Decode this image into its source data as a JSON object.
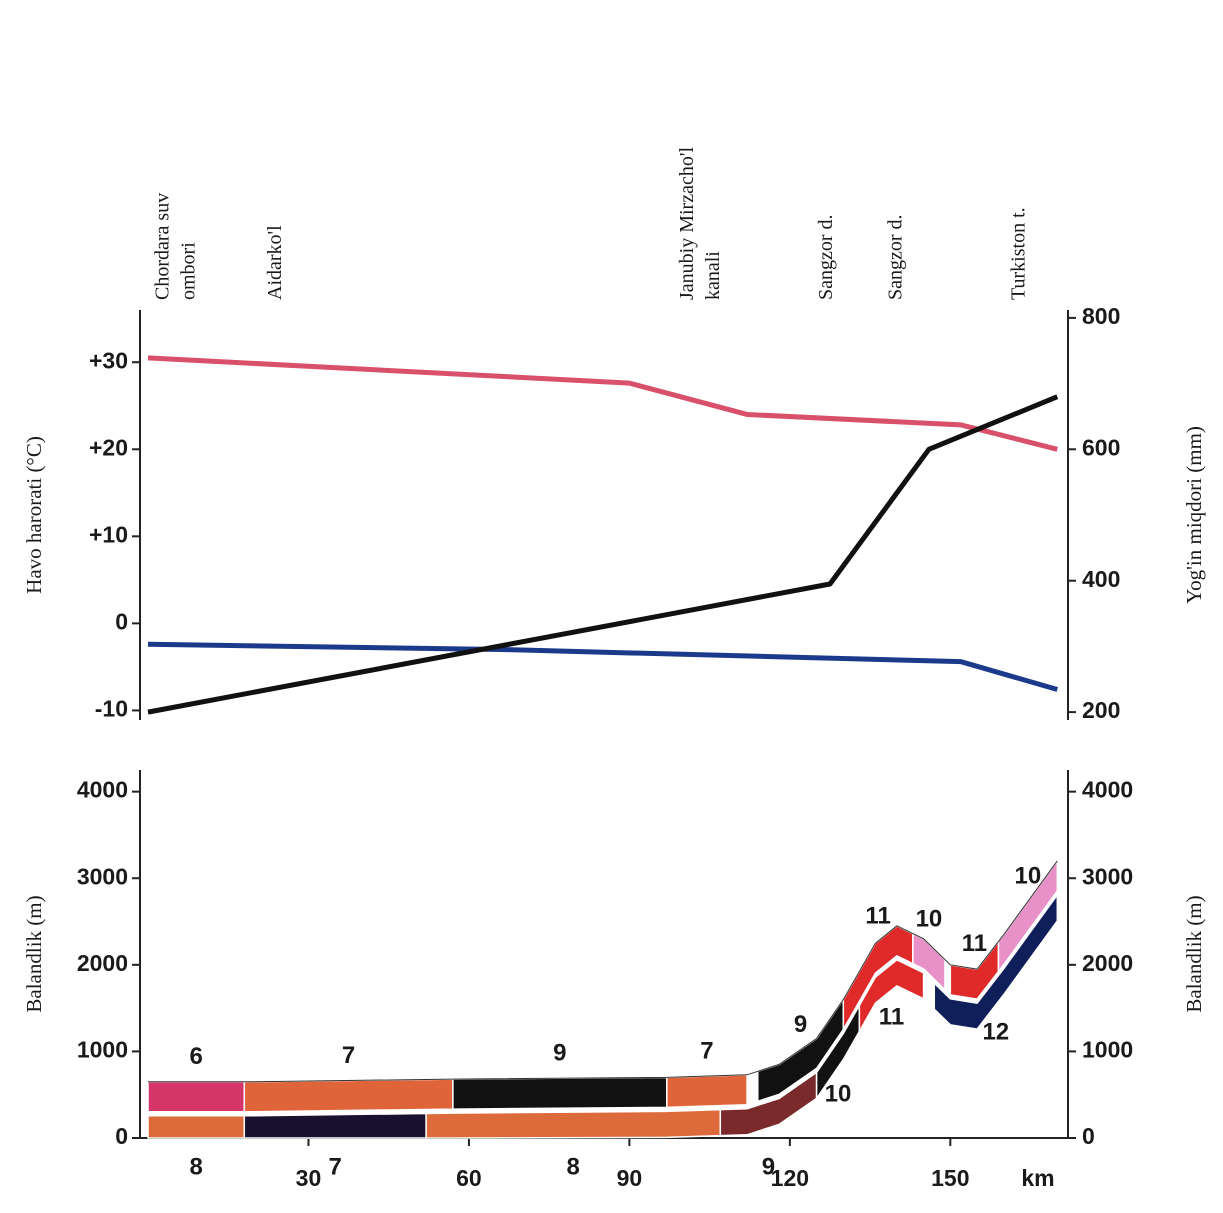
{
  "chart_data": [
    {
      "type": "line",
      "annotations": [
        {
          "x": 3,
          "lines": [
            "Chordara suv",
            "ombori"
          ]
        },
        {
          "x": 24,
          "lines": [
            "Aidarko'l"
          ]
        },
        {
          "x": 101,
          "lines": [
            "Janubiy Mirzacho'l",
            "kanali"
          ]
        },
        {
          "x": 127,
          "lines": [
            "Sangzor d."
          ]
        },
        {
          "x": 140,
          "lines": [
            "Sangzor d."
          ]
        },
        {
          "x": 163,
          "lines": [
            "Turkiston t."
          ]
        }
      ],
      "ylabel": "Havo harorati (°C)",
      "y2label": "Yog'in miqdori (mm)",
      "xlim": [
        0,
        172
      ],
      "ylim": [
        -11.1,
        36
      ],
      "y2lim": [
        188,
        812
      ],
      "yticks": [
        -10,
        0,
        {
          "value": 10,
          "label": "+10"
        },
        {
          "value": 20,
          "label": "+20"
        },
        {
          "value": 30,
          "label": "+30"
        }
      ],
      "y2ticks": [
        200,
        400,
        600,
        800
      ],
      "series": [
        {
          "color": "#d9506a",
          "x": [
            0,
            90,
            112,
            152,
            170
          ],
          "values": [
            30.5,
            27.6,
            24,
            22.8,
            20
          ]
        },
        {
          "color": "#1c3a8c",
          "x": [
            0,
            66,
            152,
            170
          ],
          "values": [
            -2.4,
            -3,
            -4.4,
            -7.6
          ]
        },
        {
          "color": "#111111",
          "axis": "y2",
          "x": [
            0,
            127.5,
            146,
            170
          ],
          "values": [
            200,
            395,
            600,
            680
          ]
        }
      ]
    },
    {
      "type": "profile",
      "ylabel": "Balandlik (m)",
      "y2label": "Balandlik (m)",
      "xlabel": "km",
      "xlim": [
        0,
        172
      ],
      "ylim": [
        0,
        4250
      ],
      "y2lim": [
        0,
        4250
      ],
      "xticks": [
        30,
        60,
        90,
        120,
        150
      ],
      "yticks": [
        0,
        1000,
        2000,
        3000,
        4000
      ],
      "y2ticks": [
        0,
        1000,
        2000,
        3000,
        4000
      ],
      "x": [
        0,
        20,
        57,
        97,
        112,
        118,
        125,
        130,
        136,
        140,
        145,
        150,
        155,
        160,
        170
      ],
      "values": [
        650,
        650,
        680,
        700,
        730,
        850,
        1150,
        1600,
        2250,
        2450,
        2300,
        2000,
        1950,
        2350,
        3200
      ],
      "upper_zones": [
        {
          "label": "6",
          "start": 0,
          "end": 18,
          "color": "#d6356a"
        },
        {
          "label": "7",
          "start": 18,
          "end": 57,
          "color": "#e0643a"
        },
        {
          "label": "9",
          "start": 57,
          "end": 97,
          "color": "#111111"
        },
        {
          "label": "7",
          "start": 97,
          "end": 112,
          "color": "#e0643a"
        },
        {
          "label": "9",
          "start": 114,
          "end": 130,
          "color": "#111111"
        },
        {
          "label": "11",
          "start": 130,
          "end": 143,
          "color": "#e02a2a"
        },
        {
          "label": "10",
          "start": 143,
          "end": 149,
          "color": "#e890c8"
        },
        {
          "label": "11",
          "start": 150,
          "end": 159,
          "color": "#e02a2a"
        },
        {
          "label": "10",
          "start": 159,
          "end": 170,
          "color": "#e890c8"
        }
      ],
      "lower_zones": [
        {
          "label": "8",
          "start": 0,
          "end": 18,
          "color": "#dd6a3a"
        },
        {
          "label": "7",
          "start": 18,
          "end": 52,
          "color": "#1a1030"
        },
        {
          "label": "8",
          "start": 52,
          "end": 107,
          "color": "#dd6a3a"
        },
        {
          "label": "9",
          "start": 107,
          "end": 125,
          "color": "#7a2a2a"
        },
        {
          "label": "10",
          "start": 125,
          "end": 133,
          "color": "#111111"
        },
        {
          "label": "11",
          "start": 133,
          "end": 145,
          "color": "#e02a2a"
        },
        {
          "label": "12",
          "start": 147,
          "end": 170,
          "color": "#0f1f5a"
        }
      ]
    }
  ]
}
